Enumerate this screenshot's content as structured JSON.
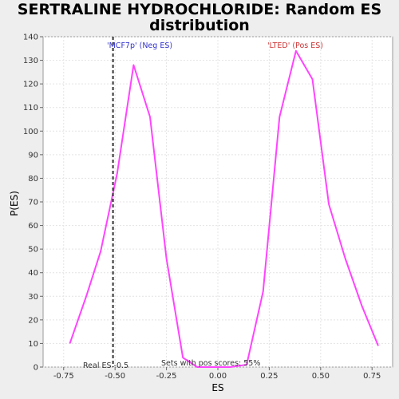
{
  "chart_data": {
    "type": "line",
    "title_line1": "SERTRALINE HYDROCHLORIDE: Random ES",
    "title_line2": "distribution",
    "xlabel": "ES",
    "ylabel": "P(ES)",
    "xlim": [
      -0.85,
      0.85
    ],
    "ylim": [
      0,
      140
    ],
    "xticks": [
      -0.75,
      -0.5,
      -0.25,
      0.0,
      0.25,
      0.5,
      0.75
    ],
    "xtick_labels": [
      "-0.75",
      "-0.50",
      "-0.25",
      "0.00",
      "0.25",
      "0.50",
      "0.75"
    ],
    "yticks": [
      0,
      10,
      20,
      30,
      40,
      50,
      60,
      70,
      80,
      90,
      100,
      110,
      120,
      130,
      140
    ],
    "ytick_labels": [
      "0",
      "10",
      "20",
      "30",
      "40",
      "50",
      "60",
      "70",
      "80",
      "90",
      "100",
      "110",
      "120",
      "130",
      "140"
    ],
    "grid": true,
    "series": [
      {
        "color": "#ff44ff",
        "x": [
          -0.72,
          -0.64,
          -0.57,
          -0.49,
          -0.41,
          -0.33,
          -0.25,
          -0.17,
          -0.1,
          -0.02,
          0.06,
          0.14,
          0.22,
          0.3,
          0.38,
          0.46,
          0.54,
          0.62,
          0.7,
          0.78
        ],
        "y": [
          10,
          30,
          49,
          82,
          128,
          106,
          46,
          4,
          0,
          0,
          0,
          1,
          32,
          106,
          134,
          122,
          69,
          46,
          26,
          9
        ]
      }
    ],
    "real_es": -0.51,
    "annotations": {
      "neg_label": "'MCF7p' (Neg ES)",
      "pos_label": "'LTED' (Pos ES)",
      "real_es_label": "Real ES -0.5",
      "pos_scores_label": "Sets with pos scores: 55%",
      "neg_color": "#3333cc",
      "pos_color": "#cc3333"
    }
  }
}
